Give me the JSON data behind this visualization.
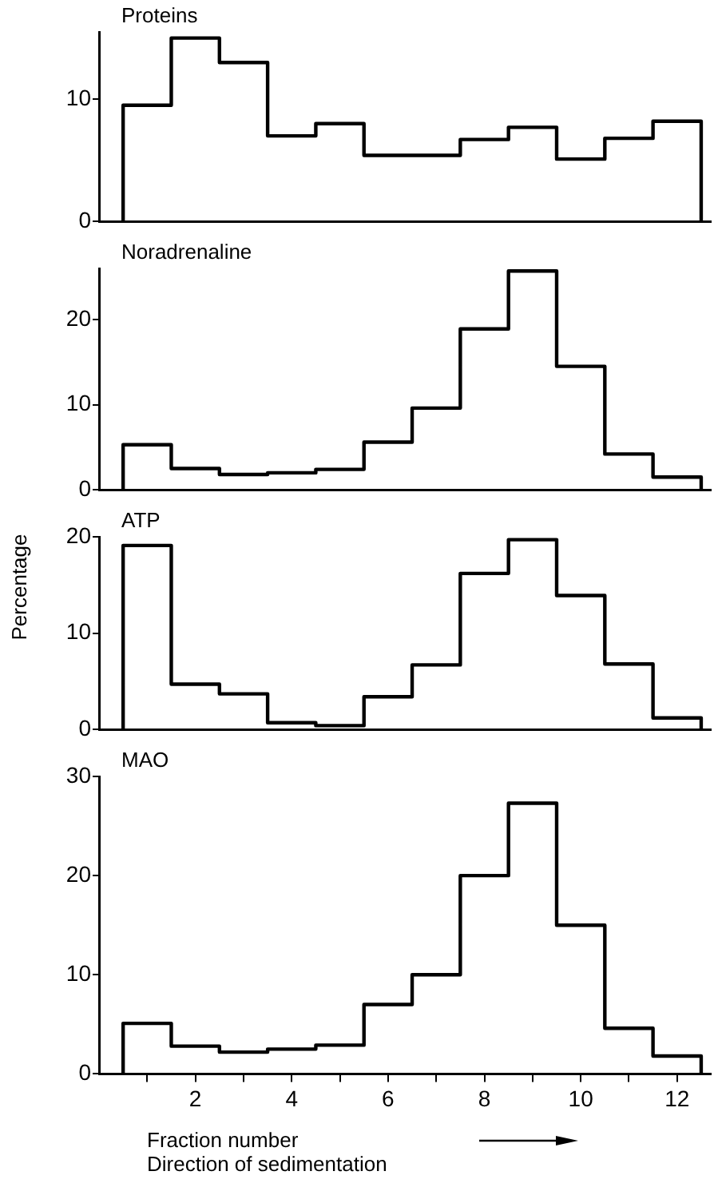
{
  "chart_data": [
    {
      "type": "histogram",
      "title": "Proteins",
      "bins": [
        0.5,
        1.5,
        2.5,
        3.5,
        4.5,
        5.5,
        6.5,
        7.5,
        8.5,
        9.5,
        10.5,
        11.5,
        12.5
      ],
      "values": [
        9.5,
        15,
        13,
        7,
        8,
        5.4,
        5.4,
        6.7,
        7.7,
        5.1,
        6.8,
        8.2
      ],
      "color": "#000000",
      "xlim": [
        0,
        12.7
      ],
      "ylim": [
        0,
        15.5
      ],
      "yticks": [
        0,
        10
      ],
      "tick_labels": "y",
      "grid": false
    },
    {
      "type": "histogram",
      "title": "Noradrenaline",
      "ylabel": "Percentage",
      "bins": [
        0.5,
        1.5,
        2.5,
        3.5,
        4.5,
        5.5,
        6.5,
        7.5,
        8.5,
        9.5,
        10.5,
        11.5,
        12.5
      ],
      "values": [
        5.3,
        2.5,
        1.8,
        2,
        2.4,
        5.6,
        9.6,
        18.9,
        25.7,
        14.5,
        4.2,
        1.5
      ],
      "color": "#000000",
      "xlim": [
        0,
        12.7
      ],
      "ylim": [
        0,
        26
      ],
      "yticks": [
        0,
        10,
        20
      ],
      "tick_labels": "y",
      "grid": false
    },
    {
      "type": "histogram",
      "title": "ATP",
      "bins": [
        0.5,
        1.5,
        2.5,
        3.5,
        4.5,
        5.5,
        6.5,
        7.5,
        8.5,
        9.5,
        10.5,
        11.5,
        12.5
      ],
      "values": [
        19.1,
        4.7,
        3.7,
        0.7,
        0.4,
        3.4,
        6.7,
        16.2,
        19.7,
        13.9,
        6.8,
        1.2
      ],
      "color": "#000000",
      "xlim": [
        0,
        12.7
      ],
      "ylim": [
        0,
        20
      ],
      "yticks": [
        0,
        10,
        20
      ],
      "tick_labels": "y",
      "grid": false
    },
    {
      "type": "histogram",
      "title": "MAO",
      "xlabel": "Fraction number",
      "annotations": [
        "Direction of sedimentation"
      ],
      "bins": [
        0.5,
        1.5,
        2.5,
        3.5,
        4.5,
        5.5,
        6.5,
        7.5,
        8.5,
        9.5,
        10.5,
        11.5,
        12.5
      ],
      "values": [
        5.1,
        2.8,
        2.2,
        2.5,
        2.9,
        7,
        10,
        20,
        27.3,
        15,
        4.6,
        1.8
      ],
      "color": "#000000",
      "xlim": [
        0,
        12.7
      ],
      "ylim": [
        0,
        30
      ],
      "yticks": [
        0,
        10,
        20,
        30
      ],
      "xticks": [
        {
          "value": 1,
          "label": null
        },
        2,
        {
          "value": 3,
          "label": null
        },
        4,
        {
          "value": 5,
          "label": null
        },
        6,
        {
          "value": 7,
          "label": null
        },
        8,
        {
          "value": 9,
          "label": null
        },
        10,
        {
          "value": 11,
          "label": null
        },
        12
      ],
      "grid": false
    }
  ]
}
